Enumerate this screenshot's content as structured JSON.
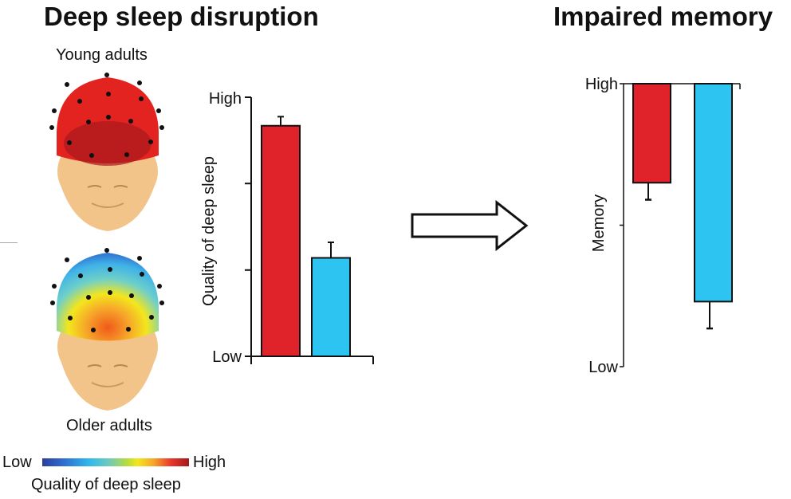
{
  "left_panel": {
    "title": "Deep sleep disruption",
    "young_label": "Young adults",
    "older_label": "Older adults",
    "colorbar": {
      "low": "Low",
      "high": "High",
      "caption": "Quality of deep sleep"
    }
  },
  "right_panel": {
    "title": "Impaired memory"
  },
  "colors": {
    "young": "#e0222a",
    "older": "#2ec4f2",
    "face": "#f2c489"
  },
  "chart_data": [
    {
      "type": "bar",
      "title": "Deep sleep disruption",
      "ylabel": "Quality of deep sleep",
      "xlabel": "",
      "categories": [
        "Young adults",
        "Older adults"
      ],
      "values": [
        0.89,
        0.38
      ],
      "error_upper": [
        0.925,
        0.44
      ],
      "ylim": [
        0,
        1
      ],
      "ytick_labels": {
        "0": "Low",
        "1": "High"
      },
      "yticks": [
        0,
        0.333,
        0.667,
        1
      ],
      "grid": false,
      "bar_colors": [
        "#e0222a",
        "#2ec4f2"
      ]
    },
    {
      "type": "bar",
      "title": "Impaired memory",
      "ylabel": "Memory",
      "xlabel": "",
      "categories": [
        "Young adults",
        "Older adults"
      ],
      "values": [
        0.65,
        0.23
      ],
      "error_lower": [
        0.59,
        0.135
      ],
      "ylim": [
        0,
        1
      ],
      "baseline": 1,
      "ytick_labels": {
        "0": "Low",
        "1": "High"
      },
      "yticks": [
        0,
        0.5,
        1
      ],
      "grid": false,
      "bar_colors": [
        "#e0222a",
        "#2ec4f2"
      ]
    }
  ]
}
